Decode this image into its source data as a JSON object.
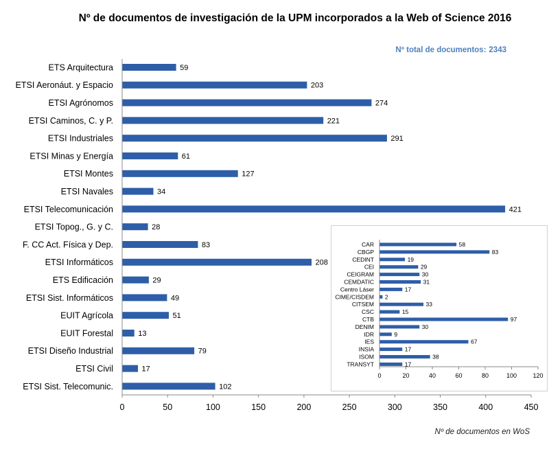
{
  "title": "Nº de documentos de investigación de la UPM incorporados a la Web of Science 2016",
  "total_label": "Nº total  de documentos:",
  "total_value": "2343",
  "accent_color": "#4f81bd",
  "bar_color": "#2e5ea8",
  "chart_data": [
    {
      "type": "bar",
      "orientation": "horizontal",
      "title": "Nº de documentos de investigación de la UPM incorporados a la Web of Science 2016",
      "xlabel": "Nº de documentos en WoS",
      "ylabel": "",
      "xlim": [
        0,
        450
      ],
      "xticks": [
        0,
        50,
        100,
        150,
        200,
        250,
        300,
        350,
        400,
        450
      ],
      "categories": [
        "ETS Arquitectura",
        "ETSI Aeronáut. y Espacio",
        "ETSI Agrónomos",
        "ETSI Caminos, C. y P.",
        "ETSI Industriales",
        "ETSI Minas y Energía",
        "ETSI Montes",
        "ETSI Navales",
        "ETSI Telecomunicación",
        "ETSI Topog., G. y C.",
        "F. CC Act. Física y Dep.",
        "ETSI Informáticos",
        "ETS Edificación",
        "ETSI Sist. Informáticos",
        "EUIT Agrícola",
        "EUIT Forestal",
        "ETSI Diseño Industrial",
        "ETSI Civil",
        "ETSI Sist. Telecomunic."
      ],
      "values": [
        59,
        203,
        274,
        221,
        291,
        61,
        127,
        34,
        421,
        28,
        83,
        208,
        29,
        49,
        51,
        13,
        79,
        17,
        102
      ]
    },
    {
      "type": "bar",
      "orientation": "horizontal",
      "title": "",
      "xlabel": "",
      "xlim": [
        0,
        120
      ],
      "xticks": [
        0,
        20,
        40,
        60,
        80,
        100,
        120
      ],
      "categories": [
        "CAR",
        "CBGP",
        "CEDINT",
        "CEI",
        "CEIGRAM",
        "CEMDATIC",
        "Centro Láser",
        "CIME/CISDEM",
        "CITSEM",
        "CSC",
        "CTB",
        "DENIM",
        "IDR",
        "IES",
        "INSIA",
        "ISOM",
        "TRANSYT"
      ],
      "values": [
        58,
        83,
        19,
        29,
        30,
        31,
        17,
        2,
        33,
        15,
        97,
        30,
        9,
        67,
        17,
        38,
        17
      ]
    }
  ]
}
